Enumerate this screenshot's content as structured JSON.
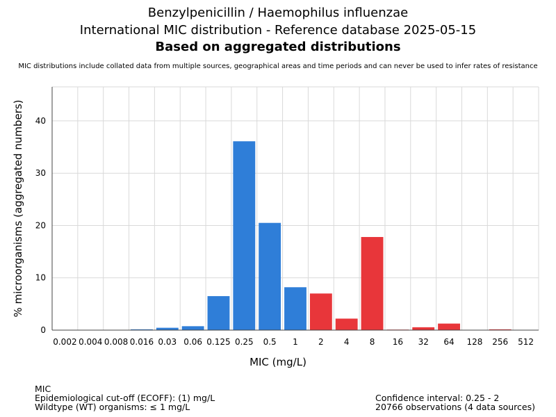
{
  "header": {
    "title": "Benzylpenicillin / Haemophilus influenzae",
    "subtitle": "International MIC distribution - Reference database 2025-05-15",
    "subtitle2": "Based on aggregated distributions",
    "note": "MIC distributions include collated data from multiple sources, geographical areas and time periods and can never be used to infer rates of resistance"
  },
  "chart_data": {
    "type": "bar",
    "xlabel": "MIC (mg/L)",
    "ylabel": "% microorganisms (aggregated numbers)",
    "ylim": [
      0,
      46.5
    ],
    "yticks": [
      0,
      10,
      20,
      30,
      40
    ],
    "grid": true,
    "categories": [
      "0.002",
      "0.004",
      "0.008",
      "0.016",
      "0.03",
      "0.06",
      "0.125",
      "0.25",
      "0.5",
      "1",
      "2",
      "4",
      "8",
      "16",
      "32",
      "64",
      "128",
      "256",
      "512"
    ],
    "values": [
      0,
      0,
      0,
      0.15,
      0.45,
      0.75,
      6.5,
      36.1,
      20.5,
      8.2,
      7.0,
      2.2,
      17.8,
      0.1,
      0.55,
      1.25,
      0,
      0.15,
      0
    ],
    "bar_colors": [
      "#2f7ed8",
      "#2f7ed8",
      "#2f7ed8",
      "#2f7ed8",
      "#2f7ed8",
      "#2f7ed8",
      "#2f7ed8",
      "#2f7ed8",
      "#2f7ed8",
      "#2f7ed8",
      "#e8363a",
      "#e8363a",
      "#e8363a",
      "#e8363a",
      "#e8363a",
      "#e8363a",
      "#e8363a",
      "#e8363a",
      "#e8363a"
    ]
  },
  "footer": {
    "left": [
      "MIC",
      "Epidemiological cut-off (ECOFF): (1) mg/L",
      "Wildtype (WT) organisms: ≤ 1 mg/L"
    ],
    "right": [
      "Confidence interval: 0.25 - 2",
      "20766 observations (4 data sources)"
    ]
  }
}
